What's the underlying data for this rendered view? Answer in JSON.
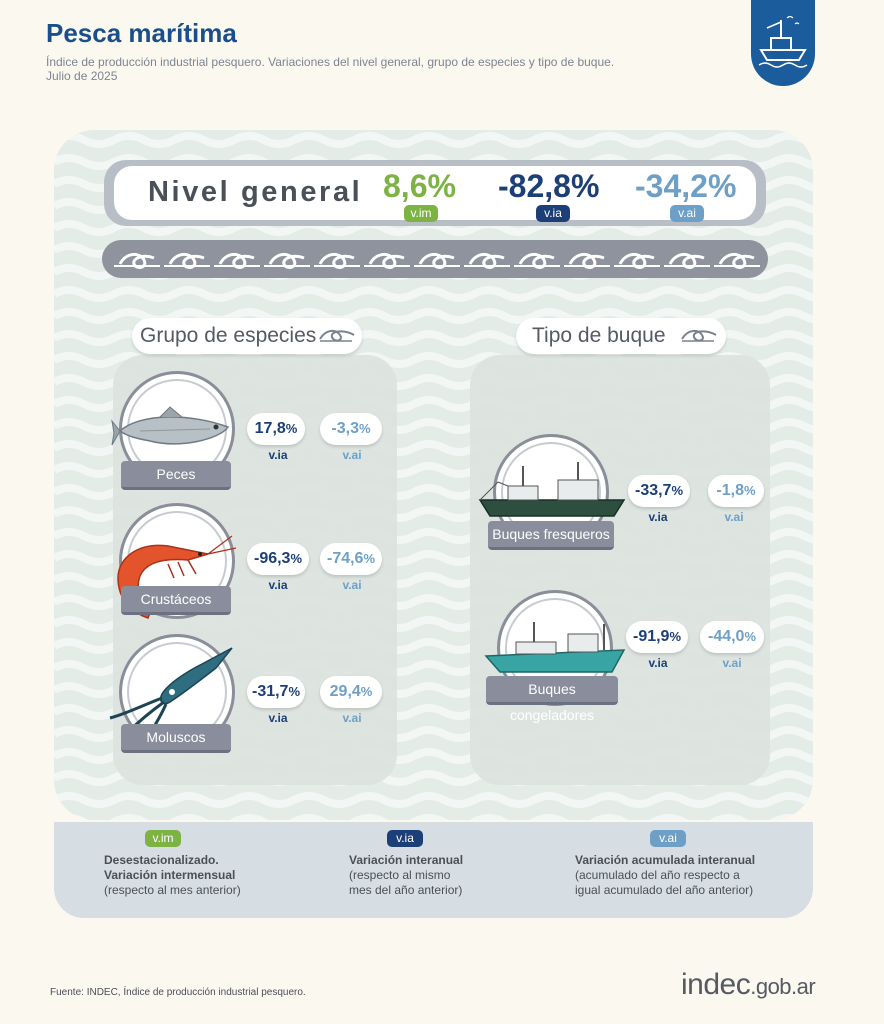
{
  "header": {
    "title": "Pesca marítima",
    "subtitle_line1": "Índice de producción industrial pesquero. Variaciones del nivel general, grupo de especies y tipo de buque.",
    "subtitle_line2": "Julio de 2025"
  },
  "colors": {
    "vim": "#7cb342",
    "via": "#1c3f78",
    "vai": "#6ea0c7",
    "brand": "#1b5c9c"
  },
  "nivel_general": {
    "label": "Nivel general",
    "vim_value": "8,6%",
    "vim_tag": "v.im",
    "via_value": "-82,8%",
    "via_tag": "v.ia",
    "vai_value": "-34,2%",
    "vai_tag": "v.ai"
  },
  "especies": {
    "title": "Grupo de especies",
    "items": [
      {
        "label": "Peces",
        "icon": "fish-icon",
        "via": "17,8",
        "vai": "-3,3",
        "via_tag": "v.ia",
        "vai_tag": "v.ai"
      },
      {
        "label": "Crustáceos",
        "icon": "shrimp-icon",
        "via": "-96,3",
        "vai": "-74,6",
        "via_tag": "v.ia",
        "vai_tag": "v.ai"
      },
      {
        "label": "Moluscos",
        "icon": "squid-icon",
        "via": "-31,7",
        "vai": "29,4",
        "via_tag": "v.ia",
        "vai_tag": "v.ai"
      }
    ]
  },
  "buques": {
    "title": "Tipo de buque",
    "items": [
      {
        "label": "Buques fresqueros",
        "icon": "fresh-fishing-ship-icon",
        "via": "-33,7",
        "vai": "-1,8",
        "via_tag": "v.ia",
        "vai_tag": "v.ai"
      },
      {
        "label": "Buques congeladores",
        "icon": "freezer-ship-icon",
        "via": "-91,9",
        "vai": "-44,0",
        "via_tag": "v.ia",
        "vai_tag": "v.ai"
      }
    ]
  },
  "pct_sign": "%",
  "legend": {
    "vim": {
      "tag": "v.im",
      "line1": "Desestacionalizado.",
      "line2": "Variación intermensual",
      "line3": "(respecto al mes anterior)"
    },
    "via": {
      "tag": "v.ia",
      "line1": "Variación interanual",
      "line2": "(respecto al mismo",
      "line3": "mes del año anterior)"
    },
    "vai": {
      "tag": "v.ai",
      "line1": "Variación acumulada interanual",
      "line2": "(acumulado del año respecto a",
      "line3": "igual acumulado del año anterior)"
    }
  },
  "footer": {
    "source": "Fuente: INDEC, Índice de producción industrial pesquero.",
    "brand_main": "indec",
    "brand_domain": ".gob.ar"
  }
}
